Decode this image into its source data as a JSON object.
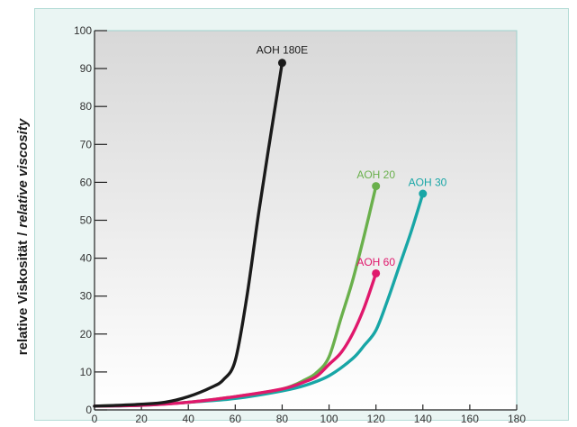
{
  "chart_data": {
    "type": "line",
    "ylabel_plain": "relative Viskosität",
    "ylabel_sep": "/",
    "ylabel_italic": "relative viscosity",
    "xlabel": "",
    "xlim": [
      0,
      180
    ],
    "ylim": [
      0,
      100
    ],
    "xticks": [
      0,
      20,
      40,
      60,
      80,
      100,
      120,
      140,
      160,
      180
    ],
    "yticks": [
      0,
      10,
      20,
      30,
      40,
      50,
      60,
      70,
      80,
      90,
      100
    ],
    "grid": false,
    "series": [
      {
        "name": "AOH 180E",
        "color": "#1a1a1a",
        "x": [
          0,
          10,
          20,
          30,
          40,
          50,
          55,
          60,
          65,
          70,
          75,
          80
        ],
        "y": [
          1,
          1.2,
          1.5,
          2,
          3.5,
          6,
          8,
          13,
          30,
          52,
          72,
          91.5
        ]
      },
      {
        "name": "AOH 20",
        "color": "#6ab04c",
        "x": [
          0,
          20,
          40,
          60,
          80,
          90,
          95,
          100,
          105,
          110,
          115,
          120
        ],
        "y": [
          1,
          1.3,
          2,
          3.5,
          5.5,
          8,
          10,
          14,
          24,
          34,
          46,
          59
        ]
      },
      {
        "name": "AOH 60",
        "color": "#e0186c",
        "x": [
          0,
          20,
          40,
          60,
          80,
          90,
          95,
          100,
          105,
          110,
          115,
          120
        ],
        "y": [
          1,
          1.2,
          2,
          3.5,
          5.5,
          7.5,
          9,
          12,
          15,
          20,
          27,
          36
        ]
      },
      {
        "name": "AOH 30",
        "color": "#18a6a6",
        "x": [
          0,
          20,
          40,
          60,
          80,
          90,
          100,
          110,
          115,
          120,
          125,
          130,
          135,
          140
        ],
        "y": [
          1,
          1.2,
          2,
          3,
          5,
          6.5,
          9,
          13.5,
          17,
          21,
          29,
          38,
          47,
          57
        ]
      }
    ],
    "annotations": [
      {
        "text": "AOH 180E",
        "x": 80,
        "y": 94,
        "color": "#1a1a1a"
      },
      {
        "text": "AOH 20",
        "x": 120,
        "y": 61,
        "color": "#6ab04c"
      },
      {
        "text": "AOH 30",
        "x": 142,
        "y": 59,
        "color": "#18a6a6"
      },
      {
        "text": "AOH 60",
        "x": 120,
        "y": 38,
        "color": "#e0186c"
      }
    ],
    "colors": {
      "frame_bg": "#eaf5f3",
      "frame_border": "#b4dcd6",
      "plot_bg_top": "#d8d8d8",
      "plot_bg_bottom": "#ffffff",
      "plot_border": "#9fd1cc",
      "axis": "#222222"
    }
  }
}
